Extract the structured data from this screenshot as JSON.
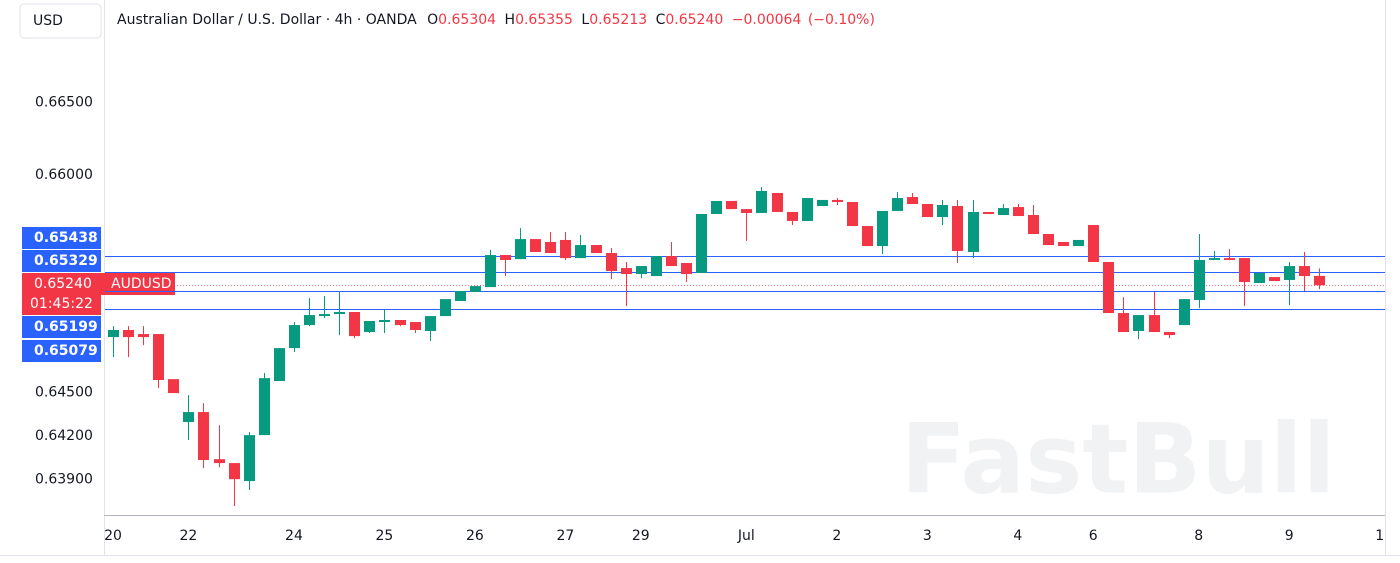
{
  "chart_data": {
    "type": "candlestick",
    "currency": "USD",
    "title": "Australian Dollar / U.S. Dollar · 4h · OANDA",
    "ohlc_header": {
      "open_label": "O",
      "open": "0.65304",
      "high_label": "H",
      "high": "0.65355",
      "low_label": "L",
      "low": "0.65213",
      "close_label": "C",
      "close": "0.65240",
      "change": "−0.00064",
      "change_pct": "(−0.10%)"
    },
    "symbol": "AUDUSD",
    "countdown": "01:45:22",
    "watermark": "FastBull",
    "up_color": "#089981",
    "down_color": "#f23645",
    "line_color": "#2962ff",
    "grid": false,
    "xlim": [
      -0.53,
      84.35
    ],
    "xticks": [
      {
        "value": 0,
        "label": "20"
      },
      {
        "value": 5,
        "label": "22"
      },
      {
        "value": 12,
        "label": "24"
      },
      {
        "value": 18,
        "label": "25"
      },
      {
        "value": 24,
        "label": "26"
      },
      {
        "value": 30,
        "label": "27"
      },
      {
        "value": 35,
        "label": "29"
      },
      {
        "value": 42,
        "label": "Jul"
      },
      {
        "value": 48,
        "label": "2"
      },
      {
        "value": 54,
        "label": "3"
      },
      {
        "value": 60,
        "label": "4"
      },
      {
        "value": 65,
        "label": "6"
      },
      {
        "value": 72,
        "label": "8"
      },
      {
        "value": 78,
        "label": "9"
      },
      {
        "value": 84,
        "label": "1"
      }
    ],
    "ylim": [
      0.63655,
      0.67207
    ],
    "yticks": [
      {
        "value": 0.639,
        "label": "0.63900"
      },
      {
        "value": 0.642,
        "label": "0.64200"
      },
      {
        "value": 0.645,
        "label": "0.64500"
      },
      {
        "value": 0.66,
        "label": "0.66000"
      },
      {
        "value": 0.665,
        "label": "0.66500"
      }
    ],
    "hlines": [
      0.65438,
      0.65329,
      {
        "value": 0.6524,
        "label": "0.65240"
      },
      0.65199,
      0.65079
    ],
    "open": [
      0.64882,
      0.64931,
      0.64903,
      0.64903,
      0.64592,
      0.64296,
      0.64365,
      0.6404,
      0.64013,
      0.63889,
      0.64206,
      0.64579,
      0.64806,
      0.64965,
      0.65027,
      0.65041,
      0.65055,
      0.64917,
      0.64986,
      0.65,
      0.64986,
      0.64924,
      0.65027,
      0.65131,
      0.65193,
      0.65227,
      0.65448,
      0.6542,
      0.65558,
      0.65538,
      0.65552,
      0.65427,
      0.65517,
      0.65462,
      0.65358,
      0.65317,
      0.65303,
      0.65441,
      0.65393,
      0.65324,
      0.65731,
      0.65821,
      0.65765,
      0.65738,
      0.65876,
      0.65745,
      0.65683,
      0.65786,
      0.65828,
      0.65814,
      0.65648,
      0.6551,
      0.65752,
      0.65848,
      0.658,
      0.6571,
      0.65786,
      0.65469,
      0.65745,
      0.65724,
      0.65779,
      0.65724,
      0.65593,
      0.65538,
      0.6551,
      0.65655,
      0.654,
      0.65048,
      0.64924,
      0.65034,
      0.64917,
      0.64965,
      0.65138,
      0.65414,
      0.65427,
      0.65427,
      0.65255,
      0.65296,
      0.65276,
      0.65372,
      0.65304
    ],
    "high": [
      0.64958,
      0.64958,
      0.64958,
      0.64903,
      0.64592,
      0.64482,
      0.64427,
      0.64275,
      0.64013,
      0.64227,
      0.64634,
      0.64806,
      0.64986,
      0.65151,
      0.65165,
      0.652,
      0.65055,
      0.64993,
      0.65069,
      0.65,
      0.64986,
      0.65027,
      0.65144,
      0.652,
      0.65234,
      0.65483,
      0.65448,
      0.65634,
      0.65558,
      0.65607,
      0.65607,
      0.65586,
      0.65517,
      0.65496,
      0.654,
      0.65372,
      0.65441,
      0.65538,
      0.65393,
      0.65731,
      0.65821,
      0.65821,
      0.65765,
      0.65917,
      0.65876,
      0.65745,
      0.65841,
      0.65828,
      0.65841,
      0.65814,
      0.65648,
      0.65752,
      0.65883,
      0.65876,
      0.658,
      0.65828,
      0.65828,
      0.65828,
      0.65745,
      0.658,
      0.658,
      0.65793,
      0.65593,
      0.65538,
      0.65552,
      0.65655,
      0.654,
      0.65158,
      0.65034,
      0.65193,
      0.64917,
      0.65144,
      0.65593,
      0.65476,
      0.65489,
      0.65427,
      0.65324,
      0.65296,
      0.654,
      0.65469,
      0.65355
    ],
    "low": [
      0.64744,
      0.64744,
      0.64827,
      0.6453,
      0.64496,
      0.64172,
      0.63978,
      0.63985,
      0.63717,
      0.63827,
      0.64206,
      0.64579,
      0.64779,
      0.64958,
      0.65013,
      0.64896,
      0.64875,
      0.6491,
      0.6491,
      0.64958,
      0.6491,
      0.64855,
      0.65027,
      0.65131,
      0.65193,
      0.65227,
      0.65303,
      0.6542,
      0.65469,
      0.65462,
      0.65414,
      0.65427,
      0.65462,
      0.65282,
      0.65096,
      0.65289,
      0.65303,
      0.65372,
      0.65262,
      0.65324,
      0.65731,
      0.65765,
      0.65545,
      0.65738,
      0.65745,
      0.65655,
      0.65683,
      0.65786,
      0.65793,
      0.65648,
      0.6551,
      0.65455,
      0.65752,
      0.658,
      0.6571,
      0.65655,
      0.65393,
      0.65427,
      0.65731,
      0.65724,
      0.65717,
      0.65593,
      0.65517,
      0.6551,
      0.6551,
      0.654,
      0.65048,
      0.64917,
      0.64868,
      0.64917,
      0.64875,
      0.64965,
      0.65082,
      0.65414,
      0.65414,
      0.65096,
      0.65255,
      0.65269,
      0.65103,
      0.652,
      0.65213
    ],
    "close": [
      0.64931,
      0.64882,
      0.64882,
      0.64586,
      0.64496,
      0.64365,
      0.64034,
      0.64013,
      0.63902,
      0.64206,
      0.64599,
      0.64806,
      0.64965,
      0.65034,
      0.65041,
      0.65055,
      0.64889,
      0.64993,
      0.65,
      0.64965,
      0.64931,
      0.65027,
      0.65144,
      0.652,
      0.65234,
      0.65448,
      0.65414,
      0.65558,
      0.65469,
      0.65462,
      0.65427,
      0.65517,
      0.65462,
      0.65338,
      0.65317,
      0.65372,
      0.65441,
      0.65372,
      0.65317,
      0.65731,
      0.65821,
      0.65765,
      0.65738,
      0.6589,
      0.65745,
      0.65683,
      0.65841,
      0.65828,
      0.65814,
      0.65648,
      0.6551,
      0.65752,
      0.65841,
      0.658,
      0.6571,
      0.65793,
      0.65476,
      0.65745,
      0.65731,
      0.65772,
      0.65717,
      0.65593,
      0.65517,
      0.6551,
      0.65552,
      0.654,
      0.65048,
      0.64917,
      0.65034,
      0.64917,
      0.64896,
      0.65144,
      0.65414,
      0.65427,
      0.65414,
      0.65262,
      0.65324,
      0.65269,
      0.65372,
      0.65303,
      0.6524
    ]
  }
}
